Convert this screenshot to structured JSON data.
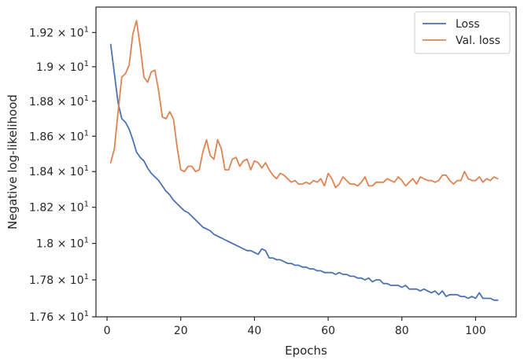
{
  "chart_data": {
    "type": "line",
    "xlabel": "Epochs",
    "ylabel": "Negative log-likelihood",
    "xlim": [
      -3,
      111
    ],
    "ylim": [
      17.6,
      19.35
    ],
    "y_scale": "log",
    "grid": false,
    "legend_position": "top-right",
    "x_ticks": [
      {
        "value": 0,
        "label": "0"
      },
      {
        "value": 20,
        "label": "20"
      },
      {
        "value": 40,
        "label": "40"
      },
      {
        "value": 60,
        "label": "60"
      },
      {
        "value": 80,
        "label": "80"
      },
      {
        "value": 100,
        "label": "100"
      }
    ],
    "y_ticks": [
      {
        "value": 17.6,
        "mant": "1.76",
        "pow": "1"
      },
      {
        "value": 17.8,
        "mant": "1.78",
        "pow": "1"
      },
      {
        "value": 18.0,
        "mant": "1.8",
        "pow": "1"
      },
      {
        "value": 18.2,
        "mant": "1.82",
        "pow": "1"
      },
      {
        "value": 18.4,
        "mant": "1.84",
        "pow": "1"
      },
      {
        "value": 18.6,
        "mant": "1.86",
        "pow": "1"
      },
      {
        "value": 18.8,
        "mant": "1.88",
        "pow": "1"
      },
      {
        "value": 19.0,
        "mant": "1.9",
        "pow": "1"
      },
      {
        "value": 19.2,
        "mant": "1.92",
        "pow": "1"
      }
    ],
    "series": [
      {
        "name": "Loss",
        "color": "#4c72b0",
        "x": [
          1,
          2,
          3,
          4,
          5,
          6,
          7,
          8,
          9,
          10,
          11,
          12,
          13,
          14,
          15,
          16,
          17,
          18,
          19,
          20,
          21,
          22,
          23,
          24,
          25,
          26,
          27,
          28,
          29,
          30,
          31,
          32,
          33,
          34,
          35,
          36,
          37,
          38,
          39,
          40,
          41,
          42,
          43,
          44,
          45,
          46,
          47,
          48,
          49,
          50,
          51,
          52,
          53,
          54,
          55,
          56,
          57,
          58,
          59,
          60,
          61,
          62,
          63,
          64,
          65,
          66,
          67,
          68,
          69,
          70,
          71,
          72,
          73,
          74,
          75,
          76,
          77,
          78,
          79,
          80,
          81,
          82,
          83,
          84,
          85,
          86,
          87,
          88,
          89,
          90,
          91,
          92,
          93,
          94,
          95,
          96,
          97,
          98,
          99,
          100,
          101,
          102,
          103,
          104,
          105,
          106
        ],
        "values": [
          19.13,
          18.96,
          18.79,
          18.7,
          18.68,
          18.64,
          18.58,
          18.51,
          18.48,
          18.46,
          18.42,
          18.39,
          18.37,
          18.35,
          18.32,
          18.29,
          18.27,
          18.24,
          18.22,
          18.2,
          18.18,
          18.17,
          18.15,
          18.13,
          18.11,
          18.09,
          18.08,
          18.07,
          18.05,
          18.04,
          18.03,
          18.02,
          18.01,
          18.0,
          17.99,
          17.98,
          17.97,
          17.96,
          17.96,
          17.95,
          17.94,
          17.97,
          17.96,
          17.92,
          17.92,
          17.91,
          17.91,
          17.9,
          17.89,
          17.89,
          17.88,
          17.88,
          17.87,
          17.87,
          17.86,
          17.86,
          17.85,
          17.85,
          17.84,
          17.84,
          17.84,
          17.83,
          17.84,
          17.83,
          17.83,
          17.82,
          17.82,
          17.81,
          17.81,
          17.8,
          17.81,
          17.79,
          17.8,
          17.8,
          17.78,
          17.78,
          17.77,
          17.77,
          17.77,
          17.76,
          17.77,
          17.75,
          17.75,
          17.75,
          17.74,
          17.75,
          17.74,
          17.73,
          17.74,
          17.72,
          17.74,
          17.71,
          17.72,
          17.72,
          17.72,
          17.71,
          17.71,
          17.7,
          17.71,
          17.7,
          17.73,
          17.7,
          17.7,
          17.7,
          17.69,
          17.69
        ]
      },
      {
        "name": "Val. loss",
        "color": "#dd8452",
        "x": [
          1,
          2,
          3,
          4,
          5,
          6,
          7,
          8,
          9,
          10,
          11,
          12,
          13,
          14,
          15,
          16,
          17,
          18,
          19,
          20,
          21,
          22,
          23,
          24,
          25,
          26,
          27,
          28,
          29,
          30,
          31,
          32,
          33,
          34,
          35,
          36,
          37,
          38,
          39,
          40,
          41,
          42,
          43,
          44,
          45,
          46,
          47,
          48,
          49,
          50,
          51,
          52,
          53,
          54,
          55,
          56,
          57,
          58,
          59,
          60,
          61,
          62,
          63,
          64,
          65,
          66,
          67,
          68,
          69,
          70,
          71,
          72,
          73,
          74,
          75,
          76,
          77,
          78,
          79,
          80,
          81,
          82,
          83,
          84,
          85,
          86,
          87,
          88,
          89,
          90,
          91,
          92,
          93,
          94,
          95,
          96,
          97,
          98,
          99,
          100,
          101,
          102,
          103,
          104,
          105,
          106
        ],
        "values": [
          18.45,
          18.53,
          18.74,
          18.94,
          18.96,
          19.01,
          19.19,
          19.27,
          19.12,
          18.94,
          18.91,
          18.97,
          18.98,
          18.86,
          18.71,
          18.7,
          18.74,
          18.7,
          18.54,
          18.41,
          18.4,
          18.43,
          18.43,
          18.4,
          18.41,
          18.51,
          18.58,
          18.49,
          18.47,
          18.58,
          18.53,
          18.41,
          18.41,
          18.47,
          18.48,
          18.43,
          18.46,
          18.47,
          18.41,
          18.46,
          18.45,
          18.42,
          18.45,
          18.41,
          18.38,
          18.36,
          18.39,
          18.38,
          18.36,
          18.34,
          18.35,
          18.33,
          18.33,
          18.34,
          18.33,
          18.35,
          18.34,
          18.36,
          18.32,
          18.39,
          18.36,
          18.31,
          18.33,
          18.37,
          18.35,
          18.33,
          18.33,
          18.32,
          18.34,
          18.37,
          18.32,
          18.32,
          18.34,
          18.34,
          18.34,
          18.36,
          18.35,
          18.34,
          18.37,
          18.35,
          18.32,
          18.34,
          18.36,
          18.33,
          18.37,
          18.36,
          18.35,
          18.35,
          18.34,
          18.35,
          18.38,
          18.38,
          18.35,
          18.33,
          18.35,
          18.35,
          18.4,
          18.36,
          18.35,
          18.35,
          18.37,
          18.34,
          18.36,
          18.35,
          18.37,
          18.36
        ]
      }
    ]
  }
}
